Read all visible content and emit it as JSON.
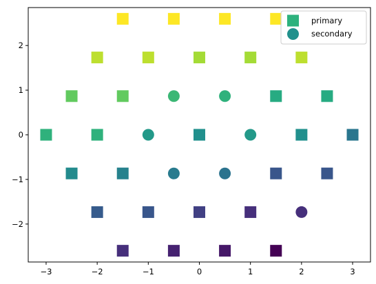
{
  "chart_data": {
    "type": "scatter",
    "title": "",
    "xlabel": "",
    "ylabel": "",
    "xlim": [
      -3.35,
      3.35
    ],
    "ylim": [
      -2.85,
      2.85
    ],
    "xticks": [
      -3,
      -2,
      -1,
      0,
      1,
      2,
      3
    ],
    "yticks": [
      -2,
      -1,
      0,
      1,
      2
    ],
    "xtick_labels": [
      "−3",
      "−2",
      "−1",
      "0",
      "1",
      "2",
      "3"
    ],
    "ytick_labels": [
      "−2",
      "−1",
      "0",
      "1",
      "2"
    ],
    "grid": false,
    "colormap": "viridis",
    "legend": {
      "position": "top-right"
    },
    "series": [
      {
        "name": "primary",
        "marker": "square",
        "legend_color": "#2db27d",
        "points": [
          {
            "x": -1.5,
            "y": 2.598,
            "c": 2.598
          },
          {
            "x": -0.5,
            "y": 2.598,
            "c": 2.598
          },
          {
            "x": 0.5,
            "y": 2.598,
            "c": 2.598
          },
          {
            "x": 1.5,
            "y": 2.598,
            "c": 2.598
          },
          {
            "x": -2,
            "y": 1.732,
            "c": 2.1
          },
          {
            "x": -1,
            "y": 1.732,
            "c": 2.1
          },
          {
            "x": 0,
            "y": 1.732,
            "c": 1.9
          },
          {
            "x": 1,
            "y": 1.732,
            "c": 1.9
          },
          {
            "x": 2,
            "y": 1.732,
            "c": 2.1
          },
          {
            "x": -2.5,
            "y": 0.866,
            "c": 1.35
          },
          {
            "x": -1.5,
            "y": 0.866,
            "c": 1.35
          },
          {
            "x": 1.5,
            "y": 0.866,
            "c": 0.6
          },
          {
            "x": 2.5,
            "y": 0.866,
            "c": 0.6
          },
          {
            "x": -3,
            "y": 0,
            "c": 0.75
          },
          {
            "x": -2,
            "y": 0,
            "c": 0.75
          },
          {
            "x": 0,
            "y": 0,
            "c": 0
          },
          {
            "x": 2,
            "y": 0,
            "c": 0
          },
          {
            "x": 3,
            "y": 0,
            "c": -0.55
          },
          {
            "x": -2.5,
            "y": -0.866,
            "c": -0.1
          },
          {
            "x": -1.5,
            "y": -0.866,
            "c": -0.3
          },
          {
            "x": 1.5,
            "y": -0.866,
            "c": -1.2
          },
          {
            "x": 2.5,
            "y": -0.866,
            "c": -1.2
          },
          {
            "x": -2,
            "y": -1.732,
            "c": -1.1
          },
          {
            "x": -1,
            "y": -1.732,
            "c": -1.2
          },
          {
            "x": 0,
            "y": -1.732,
            "c": -1.6
          },
          {
            "x": 1,
            "y": -1.732,
            "c": -1.9
          },
          {
            "x": -1.5,
            "y": -2.598,
            "c": -1.9
          },
          {
            "x": -0.5,
            "y": -2.598,
            "c": -2.1
          },
          {
            "x": 0.5,
            "y": -2.598,
            "c": -2.25
          },
          {
            "x": 1.5,
            "y": -2.598,
            "c": -2.598
          }
        ]
      },
      {
        "name": "secondary",
        "marker": "circle",
        "legend_color": "#21918c",
        "points": [
          {
            "x": -0.5,
            "y": 0.866,
            "c": 0.9
          },
          {
            "x": 0.5,
            "y": 0.866,
            "c": 0.75
          },
          {
            "x": -1,
            "y": 0,
            "c": 0.2
          },
          {
            "x": 1,
            "y": 0,
            "c": 0.2
          },
          {
            "x": -0.5,
            "y": -0.866,
            "c": -0.45
          },
          {
            "x": 0.5,
            "y": -0.866,
            "c": -0.6
          },
          {
            "x": 2,
            "y": -1.732,
            "c": -1.9
          }
        ]
      }
    ]
  }
}
